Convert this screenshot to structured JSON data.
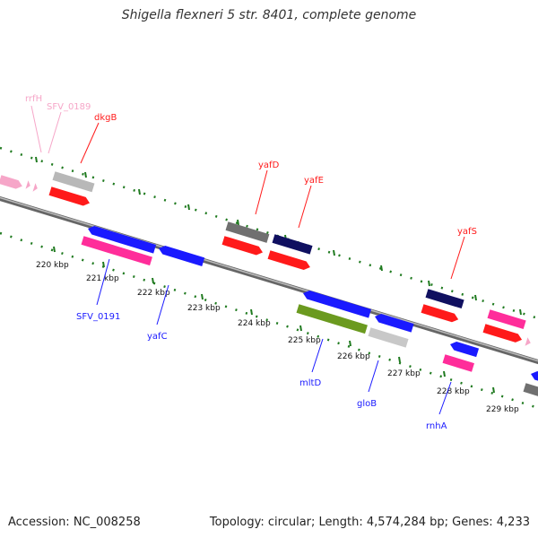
{
  "title": "Shigella flexneri 5 str. 8401, complete genome",
  "accession": "Accession: NC_008258",
  "stats": "Topology: circular; Length: 4,574,284 bp; Genes: 4,233",
  "colors": {
    "backbone": "#8a8a8a",
    "ticks": "#1f7a1f",
    "red": "#ff2a2a",
    "blue": "#1a1aff",
    "pink": "#ff3399",
    "lightpink": "#f6a6c8",
    "gray": "#b8b8b8",
    "darkgray": "#707070",
    "navy": "#101060",
    "olive": "#6b9a1f"
  },
  "kbp_labels": [
    "220 kbp",
    "221 kbp",
    "222 kbp",
    "223 kbp",
    "224 kbp",
    "225 kbp",
    "226 kbp",
    "227 kbp",
    "228 kbp",
    "229 kbp"
  ],
  "genes": [
    {
      "name": "rrfH",
      "color": "lightpink"
    },
    {
      "name": "SFV_0189",
      "color": "lightpink"
    },
    {
      "name": "dkgB",
      "color": "red"
    },
    {
      "name": "yafD",
      "color": "red"
    },
    {
      "name": "yafE",
      "color": "red"
    },
    {
      "name": "yafS",
      "color": "red"
    },
    {
      "name": "SFV_0191",
      "color": "blue"
    },
    {
      "name": "yafC",
      "color": "blue"
    },
    {
      "name": "mltD",
      "color": "blue"
    },
    {
      "name": "gloB",
      "color": "blue"
    },
    {
      "name": "rnhA",
      "color": "blue"
    }
  ]
}
